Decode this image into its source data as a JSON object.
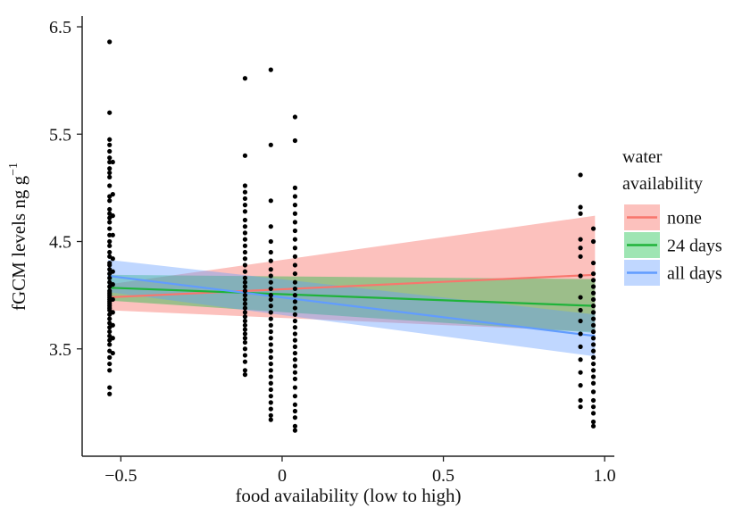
{
  "chart_data": {
    "type": "scatter",
    "title": "",
    "xlabel": "food availability (low to high)",
    "ylabel": "fGCM levels ng g",
    "ylabel_sup": "−1",
    "xlim": [
      -0.62,
      1.03
    ],
    "ylim": [
      2.5,
      6.6
    ],
    "xticks": [
      -0.5,
      0,
      0.5,
      1.0
    ],
    "xtick_labels": [
      "−0.5",
      "0",
      "0.5",
      "1.0"
    ],
    "yticks": [
      3.5,
      4.5,
      5.5,
      6.5
    ],
    "ytick_labels": [
      "3.5",
      "4.5",
      "5.5",
      "6.5"
    ],
    "grid": false,
    "legend": {
      "title_lines": [
        "water",
        "availability"
      ],
      "placement": "right",
      "entries": [
        "none",
        "24 days",
        "all days"
      ]
    },
    "series": [
      {
        "name": "none",
        "color": "#F8766D",
        "fill": "rgba(248,118,109,0.45)",
        "line": [
          [
            -0.54,
            3.98
          ],
          [
            0.97,
            4.19
          ]
        ],
        "ribbon_lower": [
          [
            -0.54,
            3.86
          ],
          [
            0.97,
            3.66
          ]
        ],
        "ribbon_upper": [
          [
            -0.54,
            4.1
          ],
          [
            0.97,
            4.74
          ]
        ]
      },
      {
        "name": "24 days",
        "color": "#1FB33A",
        "fill": "rgba(0,186,56,0.38)",
        "line": [
          [
            -0.54,
            4.07
          ],
          [
            0.97,
            3.9
          ]
        ],
        "ribbon_lower": [
          [
            -0.54,
            3.95
          ],
          [
            0.97,
            3.65
          ]
        ],
        "ribbon_upper": [
          [
            -0.54,
            4.19
          ],
          [
            0.97,
            4.15
          ]
        ]
      },
      {
        "name": "all days",
        "color": "#619CFF",
        "fill": "rgba(97,156,255,0.40)",
        "line": [
          [
            -0.54,
            4.18
          ],
          [
            0.97,
            3.62
          ]
        ],
        "ribbon_lower": [
          [
            -0.54,
            4.03
          ],
          [
            0.97,
            3.43
          ]
        ],
        "ribbon_upper": [
          [
            -0.54,
            4.33
          ],
          [
            0.97,
            3.82
          ]
        ]
      }
    ],
    "points": [
      {
        "x": -0.535,
        "y": [
          6.36,
          5.7,
          5.45,
          5.4,
          5.34,
          5.28,
          5.24,
          5.18,
          5.14,
          5.1,
          5.02,
          4.92,
          4.88,
          4.8,
          4.76,
          4.72,
          4.68,
          4.62,
          4.56,
          4.5,
          4.46,
          4.4,
          4.36,
          4.3,
          4.28,
          4.24,
          4.2,
          4.16,
          4.12,
          4.08,
          4.04,
          4.02,
          4.0,
          3.98,
          3.96,
          3.94,
          3.92,
          3.9,
          3.88,
          3.86,
          3.82,
          3.78,
          3.74,
          3.7,
          3.66,
          3.62,
          3.58,
          3.54,
          3.48,
          3.42,
          3.36,
          3.3,
          3.14,
          3.08
        ]
      },
      {
        "x": -0.525,
        "y": [
          5.24,
          4.94,
          4.74,
          4.56,
          4.34,
          4.22,
          4.1,
          3.96,
          3.84,
          3.72,
          3.6,
          3.46
        ]
      },
      {
        "x": -0.115,
        "y": [
          6.02,
          5.3,
          5.02,
          4.96,
          4.9,
          4.84,
          4.78,
          4.7,
          4.64,
          4.58,
          4.52,
          4.46,
          4.4,
          4.34,
          4.28,
          4.22,
          4.16,
          4.12,
          4.08,
          4.04,
          4.0,
          3.96,
          3.92,
          3.88,
          3.84,
          3.8,
          3.76,
          3.72,
          3.68,
          3.64,
          3.6,
          3.56,
          3.5,
          3.44,
          3.38,
          3.3,
          3.26
        ]
      },
      {
        "x": -0.035,
        "y": [
          6.1,
          5.4,
          4.88,
          4.64,
          4.5,
          4.4,
          4.32,
          4.24,
          4.18,
          4.12,
          4.06,
          4.0,
          3.96,
          3.9,
          3.84,
          3.78,
          3.72,
          3.66,
          3.6,
          3.54,
          3.48,
          3.42,
          3.36,
          3.3,
          3.24,
          3.18,
          3.12,
          3.06,
          3.0,
          2.94,
          2.88,
          2.84
        ]
      },
      {
        "x": 0.04,
        "y": [
          5.66,
          5.44,
          5.0,
          4.92,
          4.84,
          4.76,
          4.68,
          4.6,
          4.52,
          4.44,
          4.36,
          4.28,
          4.2,
          4.12,
          4.06,
          4.0,
          3.94,
          3.88,
          3.82,
          3.76,
          3.7,
          3.64,
          3.58,
          3.52,
          3.46,
          3.4,
          3.34,
          3.28,
          3.22,
          3.14,
          3.06,
          2.98,
          2.92,
          2.86,
          2.78,
          2.74
        ]
      },
      {
        "x": 0.925,
        "y": [
          5.12,
          4.82,
          4.76,
          4.52,
          4.44,
          4.36,
          4.18,
          3.98,
          3.86,
          3.76,
          3.64,
          3.52,
          3.4,
          3.28,
          3.16,
          3.02,
          2.96
        ]
      },
      {
        "x": 0.965,
        "y": [
          4.62,
          4.5,
          4.3,
          4.2,
          4.14,
          4.08,
          4.02,
          3.96,
          3.9,
          3.84,
          3.78,
          3.72,
          3.66,
          3.6,
          3.54,
          3.48,
          3.42,
          3.36,
          3.3,
          3.24,
          3.18,
          3.1,
          3.02,
          2.96,
          2.9,
          2.82,
          2.78
        ]
      }
    ]
  }
}
